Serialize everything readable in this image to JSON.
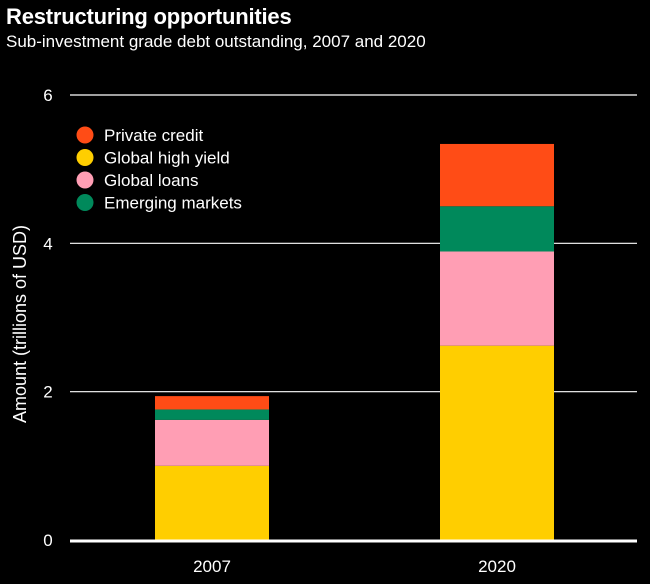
{
  "chart_data": {
    "type": "bar",
    "stacked": true,
    "title": "Restructuring opportunities",
    "subtitle": "Sub-investment grade debt outstanding, 2007 and 2020",
    "xlabel": "",
    "ylabel": "Amount (trillions of USD)",
    "ylim": [
      0,
      6
    ],
    "yticks": [
      0,
      2,
      4,
      6
    ],
    "grid": true,
    "legend_position": "top-left",
    "categories": [
      "2007",
      "2020"
    ],
    "series": [
      {
        "name": "Global high yield",
        "color": "#ffce00",
        "values": [
          1.0,
          2.62
        ]
      },
      {
        "name": "Global loans",
        "color": "#ff9eb4",
        "values": [
          0.62,
          1.27
        ]
      },
      {
        "name": "Emerging markets",
        "color": "#00895b",
        "values": [
          0.14,
          0.61
        ]
      },
      {
        "name": "Private credit",
        "color": "#ff4c16",
        "values": [
          0.18,
          0.84
        ]
      }
    ],
    "legend_order": [
      "Private credit",
      "Global high yield",
      "Global loans",
      "Emerging markets"
    ]
  }
}
